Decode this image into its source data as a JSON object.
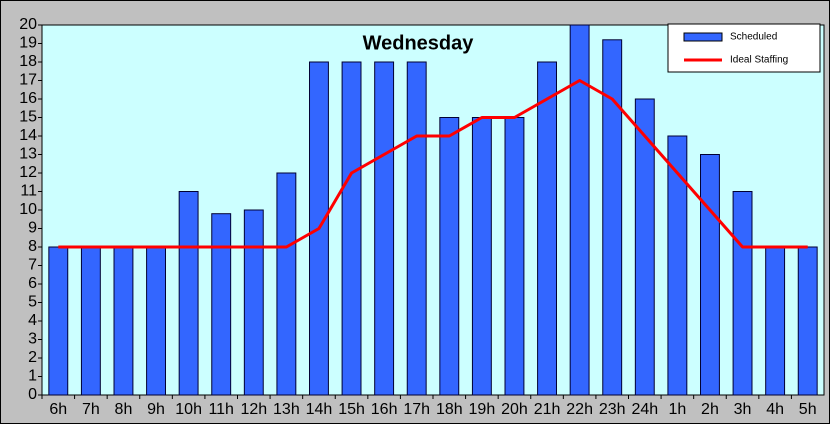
{
  "chart_data": {
    "type": "bar_line",
    "title": "Wednesday",
    "categories": [
      "6h",
      "7h",
      "8h",
      "9h",
      "10h",
      "11h",
      "12h",
      "13h",
      "14h",
      "15h",
      "16h",
      "17h",
      "18h",
      "19h",
      "20h",
      "21h",
      "22h",
      "23h",
      "24h",
      "1h",
      "2h",
      "3h",
      "4h",
      "5h"
    ],
    "series": [
      {
        "name": "Scheduled",
        "type": "bar",
        "color": "#3366ff",
        "values": [
          8,
          8,
          8,
          8,
          11,
          9.8,
          10,
          12,
          18,
          18,
          18,
          18,
          15,
          15,
          15,
          18,
          20,
          19.2,
          16,
          14,
          13,
          11,
          8,
          8
        ]
      },
      {
        "name": "Ideal Staffing",
        "type": "line",
        "color": "#ff0000",
        "values": [
          8,
          8,
          8,
          8,
          8,
          8,
          8,
          8,
          9,
          12,
          13,
          14,
          14,
          15,
          15,
          16,
          17,
          16,
          14,
          12,
          10,
          8,
          8,
          8
        ]
      }
    ],
    "ylim": [
      0,
      20
    ],
    "yticks": [
      0,
      1,
      2,
      3,
      4,
      5,
      6,
      7,
      8,
      9,
      10,
      11,
      12,
      13,
      14,
      15,
      16,
      17,
      18,
      19,
      20
    ],
    "grid": false,
    "legend": "upper right"
  }
}
